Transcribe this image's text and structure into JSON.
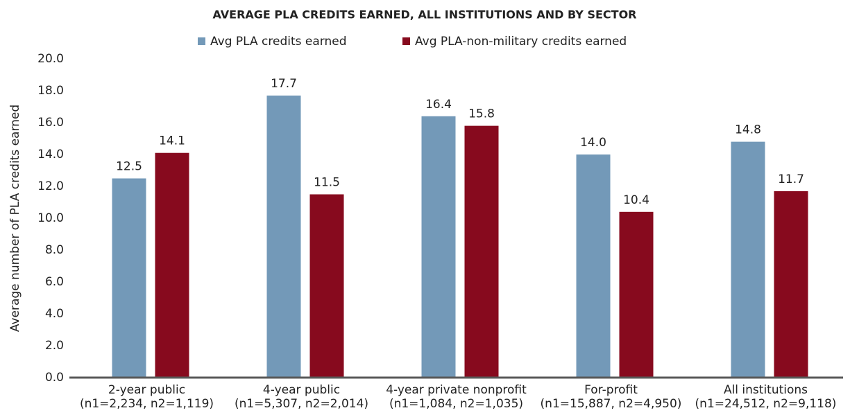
{
  "chart_data": {
    "type": "bar",
    "title": "AVERAGE PLA CREDITS EARNED, ALL INSTITUTIONS AND BY SECTOR",
    "y_label": "Average number of PLA credits earned",
    "categories": [
      [
        "2-year public",
        "(n1=2,234, n2=1,119)"
      ],
      [
        "4-year public",
        "(n1=5,307, n2=2,014)"
      ],
      [
        "4-year private nonprofit",
        "(n1=1,084, n2=1,035)"
      ],
      [
        "For-profit",
        "(n1=15,887, n2=4,950)"
      ],
      [
        "All institutions",
        "(n1=24,512, n2=9,118)"
      ]
    ],
    "series": [
      {
        "name": "Avg PLA credits earned",
        "color": "#7399b8",
        "values": [
          12.5,
          17.7,
          16.4,
          14.0,
          14.8
        ],
        "value_labels": [
          "12.5",
          "17.7",
          "16.4",
          "14.0",
          "14.8"
        ]
      },
      {
        "name": "Avg PLA-non-military credits earned",
        "color": "#870a1e",
        "values": [
          14.1,
          11.5,
          15.8,
          10.4,
          11.7
        ],
        "value_labels": [
          "14.1",
          "11.5",
          "15.8",
          "10.4",
          "11.7"
        ]
      }
    ],
    "ylim": [
      0,
      20
    ],
    "yticks": [
      {
        "value": 0,
        "label": "0.0"
      },
      {
        "value": 2,
        "label": "2.0"
      },
      {
        "value": 4,
        "label": "4.0"
      },
      {
        "value": 6,
        "label": "6.0"
      },
      {
        "value": 8,
        "label": "8.0"
      },
      {
        "value": 10,
        "label": "10.0"
      },
      {
        "value": 12,
        "label": "12.0"
      },
      {
        "value": 14,
        "label": "14.0"
      },
      {
        "value": 16,
        "label": "16.0"
      },
      {
        "value": 18,
        "label": "18.0"
      },
      {
        "value": 20,
        "label": "20.0"
      }
    ],
    "grid": false,
    "legend": "top"
  }
}
